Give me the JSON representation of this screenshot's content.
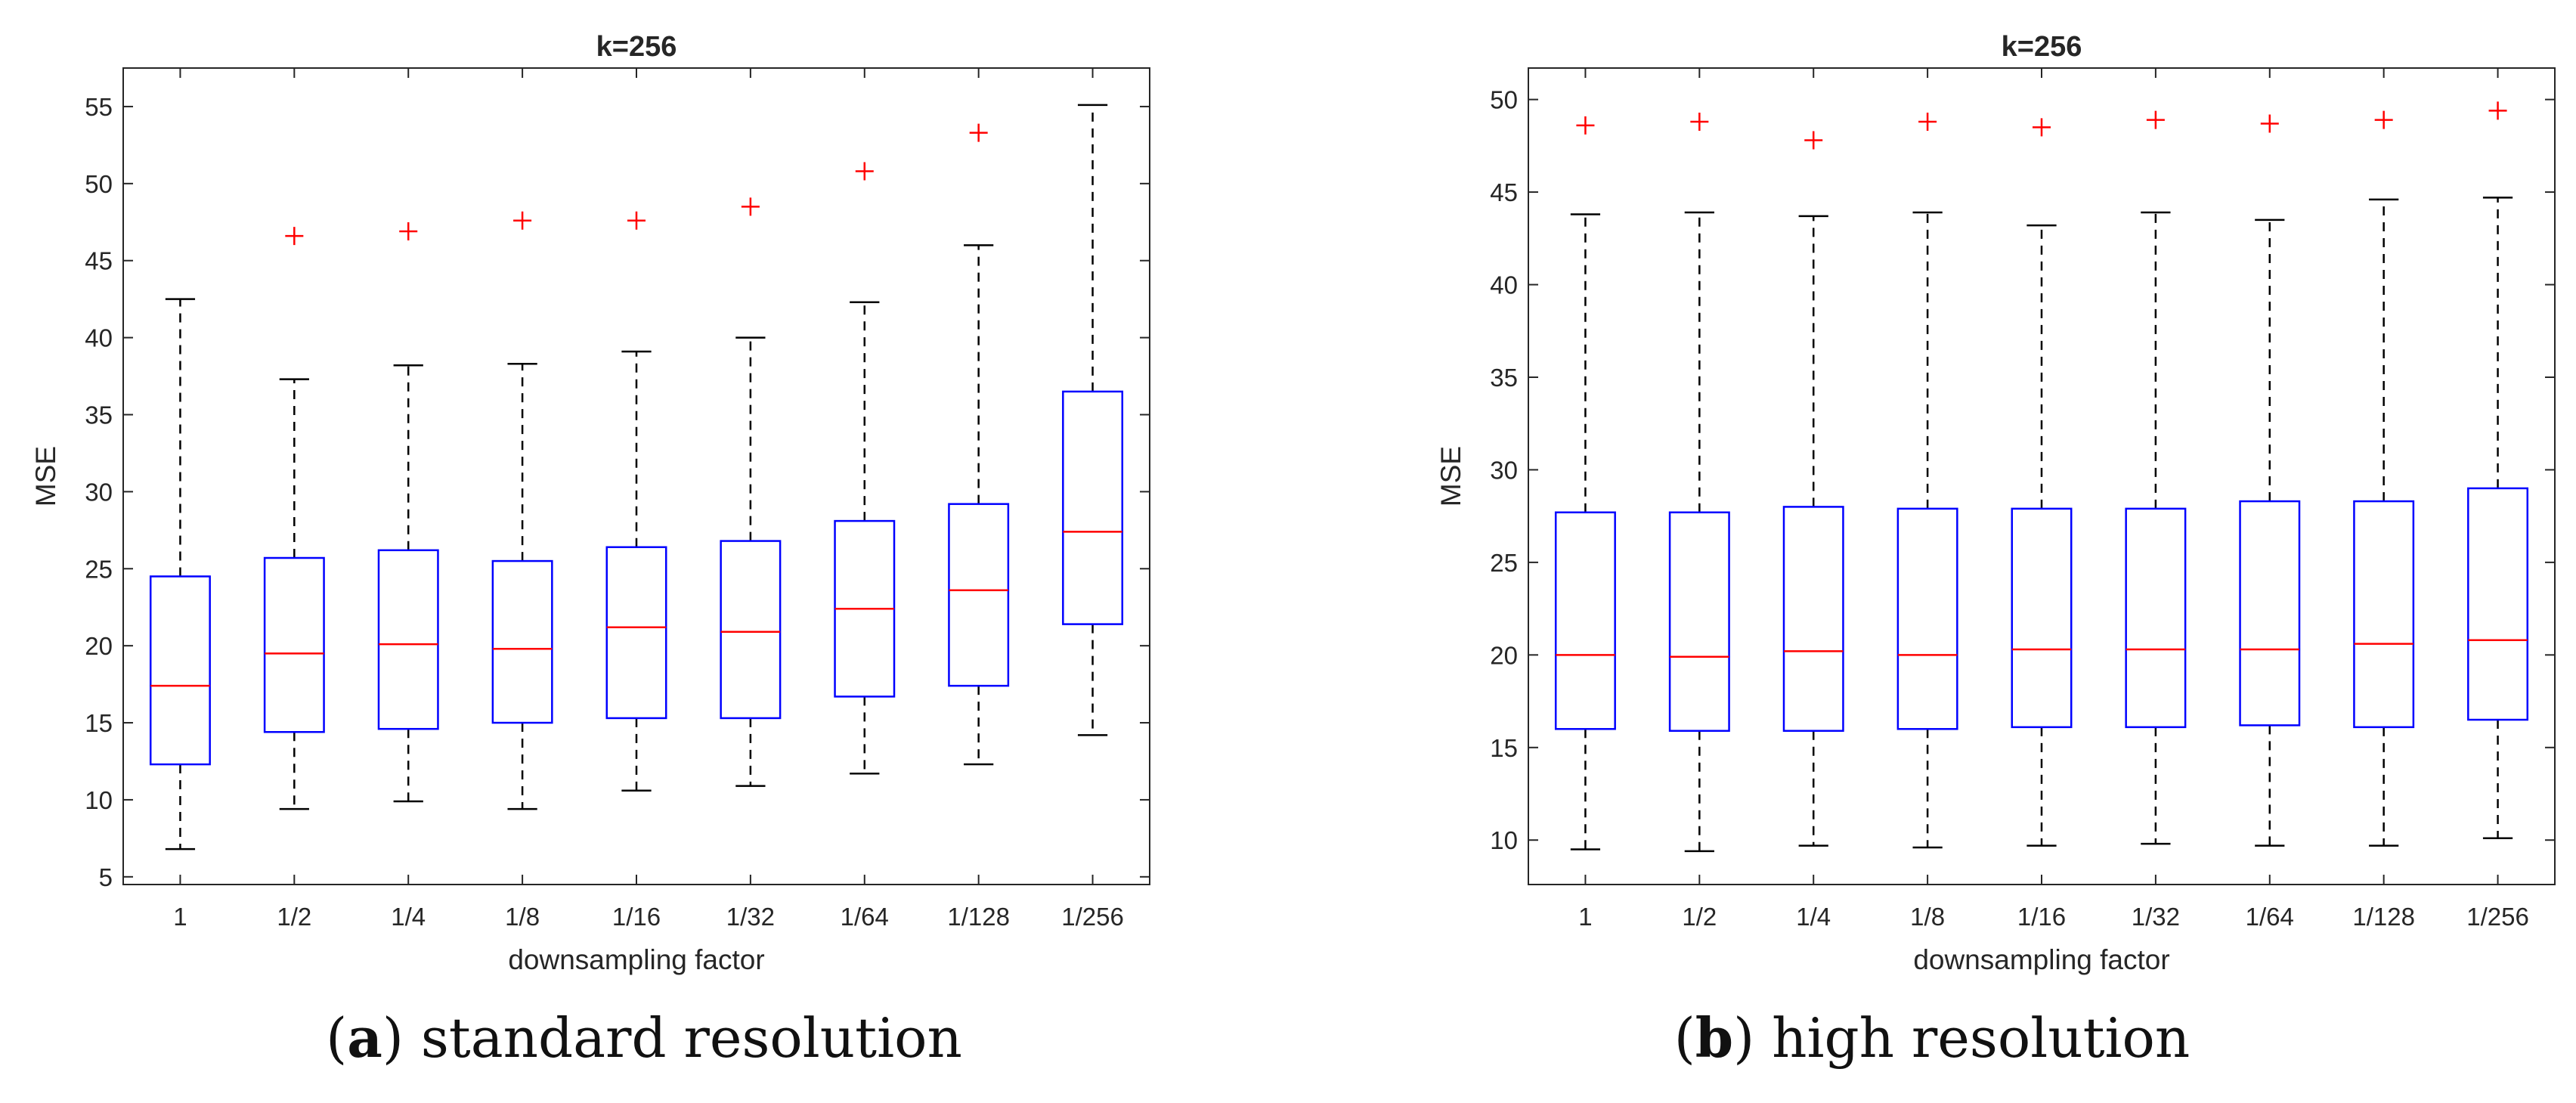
{
  "colors": {
    "box": "#0000ff",
    "median": "#ff0000",
    "outlier": "#ff0000",
    "whisker": "#000000",
    "axis": "#262626"
  },
  "panels": [
    {
      "caption_letter": "a",
      "caption_open": "(",
      "caption_close": ")",
      "caption_text": " standard resolution"
    },
    {
      "caption_letter": "b",
      "caption_open": "(",
      "caption_close": ")",
      "caption_text": " high resolution"
    }
  ],
  "chart_data": [
    {
      "type": "boxplot",
      "title": "k=256",
      "xlabel": "downsampling factor",
      "ylabel": "MSE",
      "ylim": [
        4.5,
        57.5
      ],
      "yticks": [
        5,
        10,
        15,
        20,
        25,
        30,
        35,
        40,
        45,
        50,
        55
      ],
      "categories": [
        "1",
        "1/2",
        "1/4",
        "1/8",
        "1/16",
        "1/32",
        "1/64",
        "1/128",
        "1/256"
      ],
      "boxes": [
        {
          "whisker_low": 6.8,
          "q1": 12.3,
          "median": 17.4,
          "q3": 24.5,
          "whisker_high": 42.5,
          "outliers": []
        },
        {
          "whisker_low": 9.4,
          "q1": 14.4,
          "median": 19.5,
          "q3": 25.7,
          "whisker_high": 37.3,
          "outliers": [
            46.6
          ]
        },
        {
          "whisker_low": 9.9,
          "q1": 14.6,
          "median": 20.1,
          "q3": 26.2,
          "whisker_high": 38.2,
          "outliers": [
            46.9
          ]
        },
        {
          "whisker_low": 9.4,
          "q1": 15.0,
          "median": 19.8,
          "q3": 25.5,
          "whisker_high": 38.3,
          "outliers": [
            47.6
          ]
        },
        {
          "whisker_low": 10.6,
          "q1": 15.3,
          "median": 21.2,
          "q3": 26.4,
          "whisker_high": 39.1,
          "outliers": [
            47.6
          ]
        },
        {
          "whisker_low": 10.9,
          "q1": 15.3,
          "median": 20.9,
          "q3": 26.8,
          "whisker_high": 40.0,
          "outliers": [
            48.5
          ]
        },
        {
          "whisker_low": 11.7,
          "q1": 16.7,
          "median": 22.4,
          "q3": 28.1,
          "whisker_high": 42.3,
          "outliers": [
            50.8
          ]
        },
        {
          "whisker_low": 12.3,
          "q1": 17.4,
          "median": 23.6,
          "q3": 29.2,
          "whisker_high": 46.0,
          "outliers": [
            53.3
          ]
        },
        {
          "whisker_low": 14.2,
          "q1": 21.4,
          "median": 27.4,
          "q3": 36.5,
          "whisker_high": 55.1,
          "outliers": []
        }
      ]
    },
    {
      "type": "boxplot",
      "title": "k=256",
      "xlabel": "downsampling factor",
      "ylabel": "MSE",
      "ylim": [
        7.6,
        51.7
      ],
      "yticks": [
        10,
        15,
        20,
        25,
        30,
        35,
        40,
        45,
        50
      ],
      "categories": [
        "1",
        "1/2",
        "1/4",
        "1/8",
        "1/16",
        "1/32",
        "1/64",
        "1/128",
        "1/256"
      ],
      "boxes": [
        {
          "whisker_low": 9.5,
          "q1": 16.0,
          "median": 20.0,
          "q3": 27.7,
          "whisker_high": 43.8,
          "outliers": [
            48.6
          ]
        },
        {
          "whisker_low": 9.4,
          "q1": 15.9,
          "median": 19.9,
          "q3": 27.7,
          "whisker_high": 43.9,
          "outliers": [
            48.8
          ]
        },
        {
          "whisker_low": 9.7,
          "q1": 15.9,
          "median": 20.2,
          "q3": 28.0,
          "whisker_high": 43.7,
          "outliers": [
            47.8
          ]
        },
        {
          "whisker_low": 9.6,
          "q1": 16.0,
          "median": 20.0,
          "q3": 27.9,
          "whisker_high": 43.9,
          "outliers": [
            48.8
          ]
        },
        {
          "whisker_low": 9.7,
          "q1": 16.1,
          "median": 20.3,
          "q3": 27.9,
          "whisker_high": 43.2,
          "outliers": [
            48.5
          ]
        },
        {
          "whisker_low": 9.8,
          "q1": 16.1,
          "median": 20.3,
          "q3": 27.9,
          "whisker_high": 43.9,
          "outliers": [
            48.9
          ]
        },
        {
          "whisker_low": 9.7,
          "q1": 16.2,
          "median": 20.3,
          "q3": 28.3,
          "whisker_high": 43.5,
          "outliers": [
            48.7
          ]
        },
        {
          "whisker_low": 9.7,
          "q1": 16.1,
          "median": 20.6,
          "q3": 28.3,
          "whisker_high": 44.6,
          "outliers": [
            48.9
          ]
        },
        {
          "whisker_low": 10.1,
          "q1": 16.5,
          "median": 20.8,
          "q3": 29.0,
          "whisker_high": 44.7,
          "outliers": [
            49.4
          ]
        }
      ]
    }
  ]
}
